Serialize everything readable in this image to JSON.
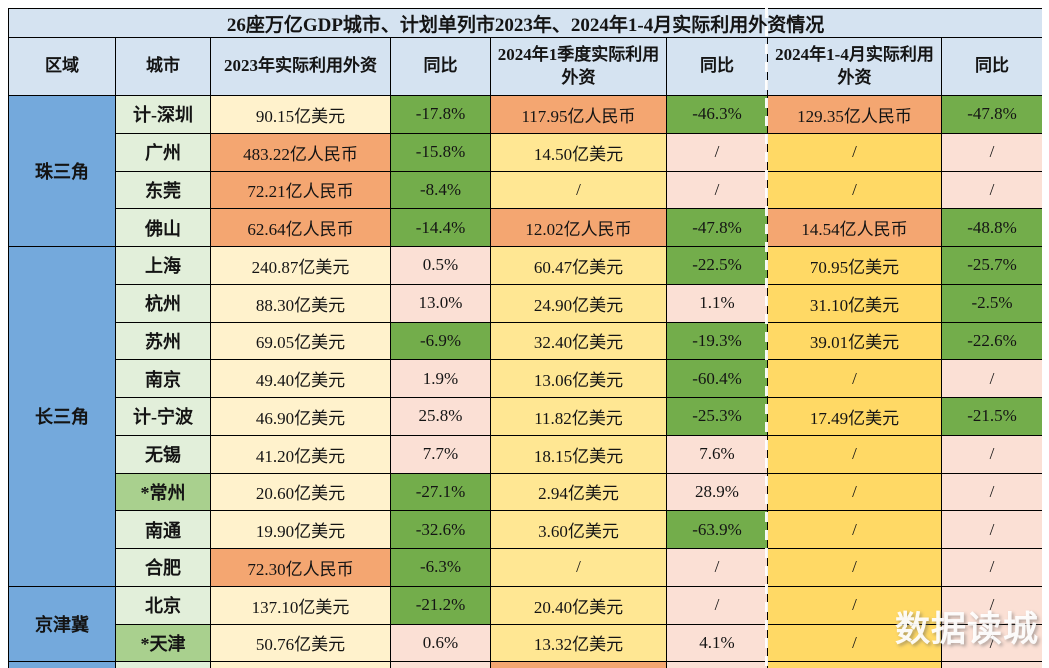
{
  "title": "26座万亿GDP城市、计划单列市2023年、2024年1-4月实际利用外资情况",
  "watermark": "数据读城",
  "colors": {
    "headerBlue": "#d5e3f1",
    "regionBlue": "#74a9dc",
    "cityGreen": "#e2efda",
    "cityGreenDark": "#a9d08e",
    "cream": "#fff2cc",
    "yellow1": "#ffe793",
    "yellow2": "#ffd965",
    "orange": "#f4a671",
    "green": "#73ad4b",
    "pink": "#fbe0d5"
  },
  "chart_data": {
    "type": "table",
    "columns": [
      "区域",
      "城市",
      "2023年实际利用外资",
      "同比",
      "2024年1季度实际利用外资",
      "同比",
      "2024年1-4月实际利用外资",
      "同比"
    ],
    "regions": [
      {
        "name": "珠三角",
        "rows": [
          {
            "city": "计-深圳",
            "starred": false,
            "cells": [
              {
                "text": "90.15亿美元",
                "bg": "cream"
              },
              {
                "text": "-17.8%",
                "bg": "green"
              },
              {
                "text": "117.95亿人民币",
                "bg": "orange"
              },
              {
                "text": "-46.3%",
                "bg": "green"
              },
              {
                "text": "129.35亿人民币",
                "bg": "orange"
              },
              {
                "text": "-47.8%",
                "bg": "green"
              }
            ]
          },
          {
            "city": "广州",
            "starred": false,
            "cells": [
              {
                "text": "483.22亿人民币",
                "bg": "orange"
              },
              {
                "text": "-15.8%",
                "bg": "green"
              },
              {
                "text": "14.50亿美元",
                "bg": "yellow1"
              },
              {
                "text": "/",
                "bg": "pink"
              },
              {
                "text": "/",
                "bg": "yellow2"
              },
              {
                "text": "/",
                "bg": "pink"
              }
            ]
          },
          {
            "city": "东莞",
            "starred": false,
            "cells": [
              {
                "text": "72.21亿人民币",
                "bg": "orange"
              },
              {
                "text": "-8.4%",
                "bg": "green"
              },
              {
                "text": "/",
                "bg": "yellow1"
              },
              {
                "text": "/",
                "bg": "pink"
              },
              {
                "text": "/",
                "bg": "yellow2"
              },
              {
                "text": "/",
                "bg": "pink"
              }
            ]
          },
          {
            "city": "佛山",
            "starred": false,
            "cells": [
              {
                "text": "62.64亿人民币",
                "bg": "orange"
              },
              {
                "text": "-14.4%",
                "bg": "green"
              },
              {
                "text": "12.02亿人民币",
                "bg": "orange"
              },
              {
                "text": "-47.8%",
                "bg": "green"
              },
              {
                "text": "14.54亿人民币",
                "bg": "orange"
              },
              {
                "text": "-48.8%",
                "bg": "green"
              }
            ]
          }
        ]
      },
      {
        "name": "长三角",
        "rows": [
          {
            "city": "上海",
            "starred": false,
            "cells": [
              {
                "text": "240.87亿美元",
                "bg": "cream"
              },
              {
                "text": "0.5%",
                "bg": "pink"
              },
              {
                "text": "60.47亿美元",
                "bg": "yellow1"
              },
              {
                "text": "-22.5%",
                "bg": "green"
              },
              {
                "text": "70.95亿美元",
                "bg": "yellow2"
              },
              {
                "text": "-25.7%",
                "bg": "green"
              }
            ]
          },
          {
            "city": "杭州",
            "starred": false,
            "cells": [
              {
                "text": "88.30亿美元",
                "bg": "cream"
              },
              {
                "text": "13.0%",
                "bg": "pink"
              },
              {
                "text": "24.90亿美元",
                "bg": "yellow1"
              },
              {
                "text": "1.1%",
                "bg": "pink"
              },
              {
                "text": "31.10亿美元",
                "bg": "yellow2"
              },
              {
                "text": "-2.5%",
                "bg": "green"
              }
            ]
          },
          {
            "city": "苏州",
            "starred": false,
            "cells": [
              {
                "text": "69.05亿美元",
                "bg": "cream"
              },
              {
                "text": "-6.9%",
                "bg": "green"
              },
              {
                "text": "32.40亿美元",
                "bg": "yellow1"
              },
              {
                "text": "-19.3%",
                "bg": "green"
              },
              {
                "text": "39.01亿美元",
                "bg": "yellow2"
              },
              {
                "text": "-22.6%",
                "bg": "green"
              }
            ]
          },
          {
            "city": "南京",
            "starred": false,
            "cells": [
              {
                "text": "49.40亿美元",
                "bg": "cream"
              },
              {
                "text": "1.9%",
                "bg": "pink"
              },
              {
                "text": "13.06亿美元",
                "bg": "yellow1"
              },
              {
                "text": "-60.4%",
                "bg": "green"
              },
              {
                "text": "/",
                "bg": "yellow2"
              },
              {
                "text": "/",
                "bg": "pink"
              }
            ]
          },
          {
            "city": "计-宁波",
            "starred": false,
            "cells": [
              {
                "text": "46.90亿美元",
                "bg": "cream"
              },
              {
                "text": "25.8%",
                "bg": "pink"
              },
              {
                "text": "11.82亿美元",
                "bg": "yellow1"
              },
              {
                "text": "-25.3%",
                "bg": "green"
              },
              {
                "text": "17.49亿美元",
                "bg": "yellow2"
              },
              {
                "text": "-21.5%",
                "bg": "green"
              }
            ]
          },
          {
            "city": "无锡",
            "starred": false,
            "cells": [
              {
                "text": "41.20亿美元",
                "bg": "cream"
              },
              {
                "text": "7.7%",
                "bg": "pink"
              },
              {
                "text": "18.15亿美元",
                "bg": "yellow1"
              },
              {
                "text": "7.6%",
                "bg": "pink"
              },
              {
                "text": "/",
                "bg": "yellow2"
              },
              {
                "text": "/",
                "bg": "pink"
              }
            ]
          },
          {
            "city": "*常州",
            "starred": true,
            "cells": [
              {
                "text": "20.60亿美元",
                "bg": "cream"
              },
              {
                "text": "-27.1%",
                "bg": "green"
              },
              {
                "text": "2.94亿美元",
                "bg": "yellow1"
              },
              {
                "text": "28.9%",
                "bg": "pink"
              },
              {
                "text": "/",
                "bg": "yellow2"
              },
              {
                "text": "/",
                "bg": "pink"
              }
            ]
          },
          {
            "city": "南通",
            "starred": false,
            "cells": [
              {
                "text": "19.90亿美元",
                "bg": "cream"
              },
              {
                "text": "-32.6%",
                "bg": "green"
              },
              {
                "text": "3.60亿美元",
                "bg": "yellow1"
              },
              {
                "text": "-63.9%",
                "bg": "green"
              },
              {
                "text": "/",
                "bg": "yellow2"
              },
              {
                "text": "/",
                "bg": "pink"
              }
            ]
          },
          {
            "city": "合肥",
            "starred": false,
            "cells": [
              {
                "text": "72.30亿人民币",
                "bg": "orange"
              },
              {
                "text": "-6.3%",
                "bg": "green"
              },
              {
                "text": "/",
                "bg": "yellow1"
              },
              {
                "text": "/",
                "bg": "pink"
              },
              {
                "text": "/",
                "bg": "yellow2"
              },
              {
                "text": "/",
                "bg": "pink"
              }
            ]
          }
        ]
      },
      {
        "name": "京津冀",
        "rows": [
          {
            "city": "北京",
            "starred": false,
            "cells": [
              {
                "text": "137.10亿美元",
                "bg": "cream"
              },
              {
                "text": "-21.2%",
                "bg": "green"
              },
              {
                "text": "20.40亿美元",
                "bg": "yellow1"
              },
              {
                "text": "/",
                "bg": "pink"
              },
              {
                "text": "/",
                "bg": "yellow2"
              },
              {
                "text": "/",
                "bg": "pink"
              }
            ]
          },
          {
            "city": "*天津",
            "starred": true,
            "cells": [
              {
                "text": "50.76亿美元",
                "bg": "cream"
              },
              {
                "text": "0.6%",
                "bg": "pink"
              },
              {
                "text": "13.32亿美元",
                "bg": "yellow1"
              },
              {
                "text": "4.1%",
                "bg": "pink"
              },
              {
                "text": "/",
                "bg": "yellow2"
              },
              {
                "text": "/",
                "bg": "pink"
              }
            ]
          }
        ]
      }
    ],
    "partial_row_bgs": [
      "regionBlue",
      "cityGreen",
      "cream",
      "pink",
      "orange",
      "pink",
      "yellow2",
      "pink"
    ]
  }
}
